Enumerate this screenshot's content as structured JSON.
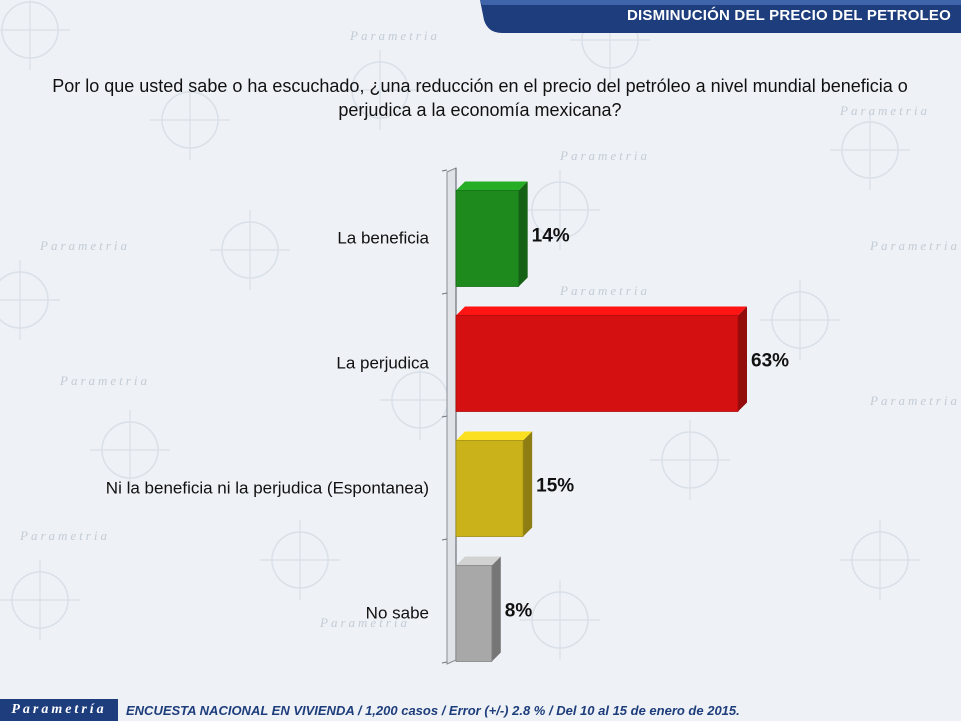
{
  "header": {
    "banner_title": "DISMINUCIÓN DEL PRECIO DEL PETROLEO",
    "question": "Por lo que usted sabe o ha escuchado, ¿una reducción en el precio del petróleo a nivel mundial beneficia o perjudica a la economía mexicana?"
  },
  "colors": {
    "banner": "#1d3d7c",
    "la_beneficia": "#1e8a1e",
    "la_perjudica": "#d41010",
    "ni_beneficia": "#c9b21a",
    "no_sabe": "#a8a8a8"
  },
  "chart_data": {
    "type": "bar",
    "orientation": "horizontal",
    "categories": [
      "La beneficia",
      "La perjudica",
      "Ni la beneficia ni la perjudica (Espontanea)",
      "No sabe"
    ],
    "values": [
      14,
      63,
      15,
      8
    ],
    "data_labels": [
      "14%",
      "63%",
      "15%",
      "8%"
    ],
    "colors": [
      "#1e8a1e",
      "#d41010",
      "#c9b21a",
      "#a8a8a8"
    ],
    "unit": "%",
    "xlim": [
      0,
      100
    ],
    "grid": false,
    "legend": "none"
  },
  "footer": {
    "brand": "Parametría",
    "note": "ENCUESTA NACIONAL EN VIVIENDA / 1,200 casos / Error (+/-) 2.8 % / Del 10 al 15 de enero de 2015."
  },
  "watermark": {
    "text": "Parametria"
  }
}
